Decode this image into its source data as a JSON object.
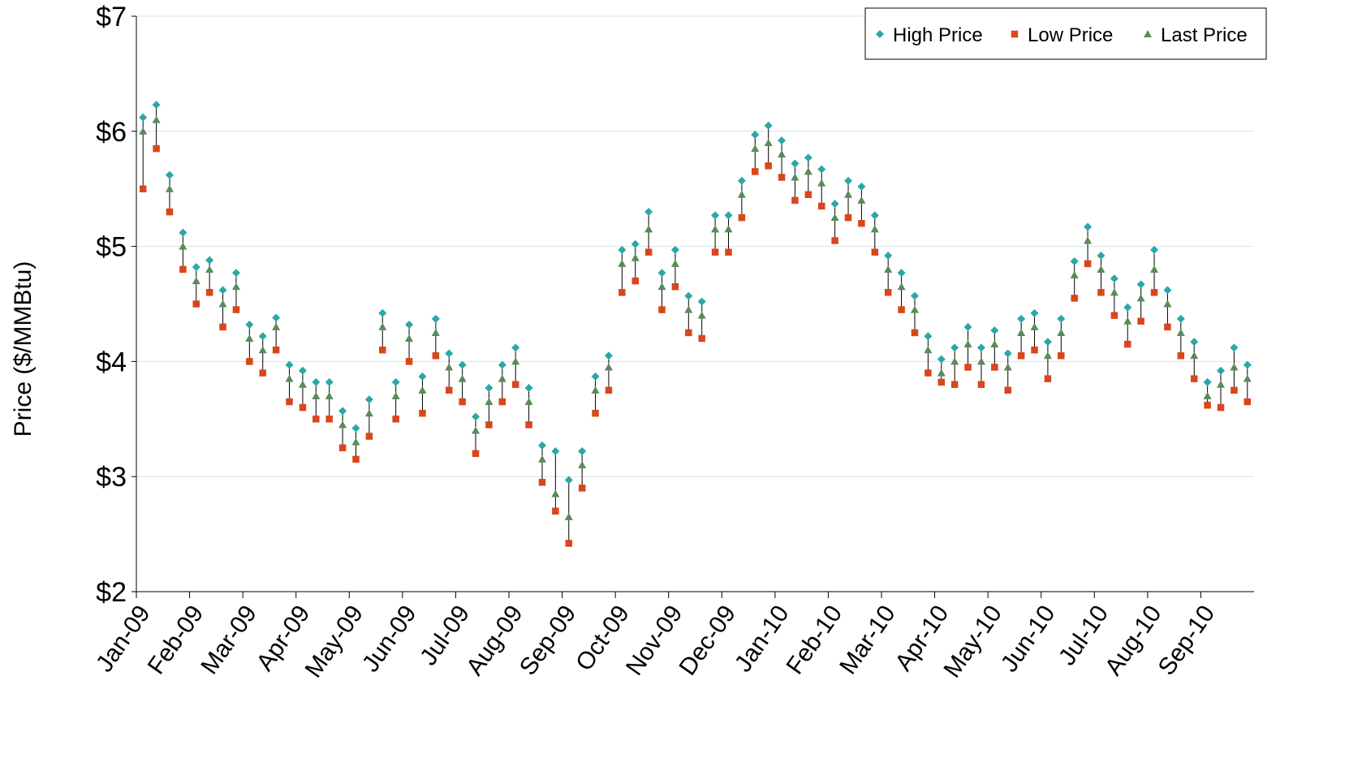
{
  "chart_data": {
    "type": "hlc",
    "y_label": "Price ($/MMBtu)",
    "categories": [
      "Jan-09",
      null,
      null,
      null,
      "Feb-09",
      null,
      null,
      null,
      "Mar-09",
      null,
      null,
      null,
      "Apr-09",
      null,
      null,
      null,
      "May-09",
      null,
      null,
      null,
      "Jun-09",
      null,
      null,
      null,
      "Jul-09",
      null,
      null,
      null,
      "Aug-09",
      null,
      null,
      null,
      "Sep-09",
      null,
      null,
      null,
      "Oct-09",
      null,
      null,
      null,
      "Nov-09",
      null,
      null,
      null,
      "Dec-09",
      null,
      null,
      null,
      "Jan-10",
      null,
      null,
      null,
      "Feb-10",
      null,
      null,
      null,
      "Mar-10",
      null,
      null,
      null,
      "Apr-10",
      null,
      null,
      null,
      "May-10",
      null,
      null,
      null,
      "Jun-10",
      null,
      null,
      null,
      "Jul-10",
      null,
      null,
      null,
      "Aug-10",
      null,
      null,
      null,
      "Sep-10",
      null,
      null,
      null
    ],
    "series": [
      {
        "name": "High Price",
        "color": "#2aa8a8",
        "marker": "diamond",
        "values": [
          6.12,
          6.23,
          5.62,
          5.12,
          4.82,
          4.88,
          4.62,
          4.77,
          4.32,
          4.22,
          4.38,
          3.97,
          3.92,
          3.82,
          3.82,
          3.57,
          3.42,
          3.67,
          4.42,
          3.82,
          4.32,
          3.87,
          4.37,
          4.07,
          3.97,
          3.52,
          3.77,
          3.97,
          4.12,
          3.77,
          3.27,
          3.22,
          2.97,
          3.22,
          3.87,
          4.05,
          4.97,
          5.02,
          5.3,
          4.77,
          4.97,
          4.57,
          4.52,
          5.27,
          5.27,
          5.57,
          5.97,
          6.05,
          5.92,
          5.72,
          5.77,
          5.67,
          5.37,
          5.57,
          5.52,
          5.27,
          4.92,
          4.77,
          4.57,
          4.22,
          4.02,
          4.12,
          4.3,
          4.12,
          4.27,
          4.07,
          4.37,
          4.42,
          4.17,
          4.37,
          4.87,
          5.17,
          4.92,
          4.72,
          4.47,
          4.67,
          4.97,
          4.62,
          4.37,
          4.17,
          3.82,
          3.92,
          4.12,
          3.97
        ]
      },
      {
        "name": "Low Price",
        "color": "#d9461c",
        "marker": "square",
        "values": [
          5.5,
          5.85,
          5.3,
          4.8,
          4.5,
          4.6,
          4.3,
          4.45,
          4.0,
          3.9,
          4.1,
          3.65,
          3.6,
          3.5,
          3.5,
          3.25,
          3.15,
          3.35,
          4.1,
          3.5,
          4.0,
          3.55,
          4.05,
          3.75,
          3.65,
          3.2,
          3.45,
          3.65,
          3.8,
          3.45,
          2.95,
          2.7,
          2.42,
          2.9,
          3.55,
          3.75,
          4.6,
          4.7,
          4.95,
          4.45,
          4.65,
          4.25,
          4.2,
          4.95,
          4.95,
          5.25,
          5.65,
          5.7,
          5.6,
          5.4,
          5.45,
          5.35,
          5.05,
          5.25,
          5.2,
          4.95,
          4.6,
          4.45,
          4.25,
          3.9,
          3.82,
          3.8,
          3.95,
          3.8,
          3.95,
          3.75,
          4.05,
          4.1,
          3.85,
          4.05,
          4.55,
          4.85,
          4.6,
          4.4,
          4.15,
          4.35,
          4.6,
          4.3,
          4.05,
          3.85,
          3.62,
          3.6,
          3.75,
          3.65
        ]
      },
      {
        "name": "Last Price",
        "color": "#5a8a5a",
        "marker": "triangle",
        "values": [
          6.0,
          6.1,
          5.5,
          5.0,
          4.7,
          4.8,
          4.5,
          4.65,
          4.2,
          4.1,
          4.3,
          3.85,
          3.8,
          3.7,
          3.7,
          3.45,
          3.3,
          3.55,
          4.3,
          3.7,
          4.2,
          3.75,
          4.25,
          3.95,
          3.85,
          3.4,
          3.65,
          3.85,
          4.0,
          3.65,
          3.15,
          2.85,
          2.65,
          3.1,
          3.75,
          3.95,
          4.85,
          4.9,
          5.15,
          4.65,
          4.85,
          4.45,
          4.4,
          5.15,
          5.15,
          5.45,
          5.85,
          5.9,
          5.8,
          5.6,
          5.65,
          5.55,
          5.25,
          5.45,
          5.4,
          5.15,
          4.8,
          4.65,
          4.45,
          4.1,
          3.9,
          4.0,
          4.15,
          4.0,
          4.15,
          3.95,
          4.25,
          4.3,
          4.05,
          4.25,
          4.75,
          5.05,
          4.8,
          4.6,
          4.35,
          4.55,
          4.8,
          4.5,
          4.25,
          4.05,
          3.7,
          3.8,
          3.95,
          3.85
        ]
      }
    ],
    "ylim": [
      2,
      7
    ],
    "yticks": [
      {
        "value": 2,
        "label": "$2"
      },
      {
        "value": 3,
        "label": "$3"
      },
      {
        "value": 4,
        "label": "$4"
      },
      {
        "value": 5,
        "label": "$5"
      },
      {
        "value": 6,
        "label": "$6"
      },
      {
        "value": 7,
        "label": "$7"
      }
    ],
    "grid": true,
    "legend": "top-right"
  }
}
